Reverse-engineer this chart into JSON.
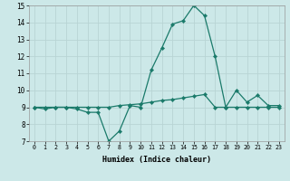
{
  "xlabel": "Humidex (Indice chaleur)",
  "x_values": [
    0,
    1,
    2,
    3,
    4,
    5,
    6,
    7,
    8,
    9,
    10,
    11,
    12,
    13,
    14,
    15,
    16,
    17,
    18,
    19,
    20,
    21,
    22,
    23
  ],
  "line1_y": [
    9.0,
    8.9,
    9.0,
    9.0,
    8.9,
    8.7,
    8.7,
    7.0,
    7.6,
    9.1,
    9.0,
    11.2,
    12.5,
    13.9,
    14.1,
    15.0,
    14.4,
    12.0,
    9.0,
    10.0,
    9.3,
    9.7,
    9.1,
    9.1
  ],
  "line2_y": [
    9.0,
    9.0,
    9.0,
    9.0,
    9.0,
    9.0,
    9.0,
    9.0,
    9.1,
    9.15,
    9.2,
    9.3,
    9.4,
    9.45,
    9.55,
    9.65,
    9.75,
    9.0,
    9.0,
    9.0,
    9.0,
    9.0,
    9.0,
    9.0
  ],
  "line_color": "#1a7a6a",
  "bg_color": "#cce8e8",
  "grid_color": "#b8d4d4",
  "ylim": [
    7,
    15
  ],
  "yticks": [
    7,
    8,
    9,
    10,
    11,
    12,
    13,
    14,
    15
  ],
  "xlim": [
    -0.5,
    23.5
  ],
  "xticks": [
    0,
    1,
    2,
    3,
    4,
    5,
    6,
    7,
    8,
    9,
    10,
    11,
    12,
    13,
    14,
    15,
    16,
    17,
    18,
    19,
    20,
    21,
    22,
    23
  ]
}
